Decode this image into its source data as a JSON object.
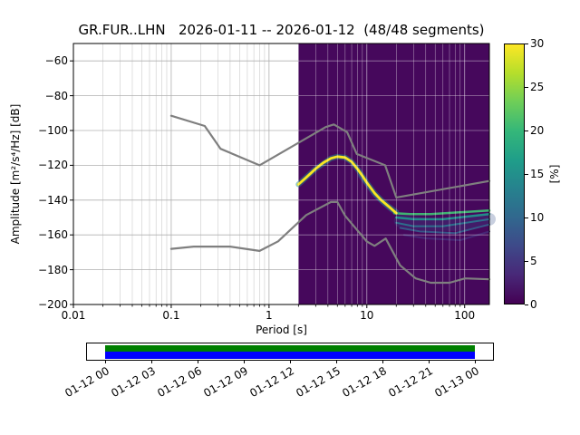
{
  "title": "GR.FUR..LHN   2026-01-11 -- 2026-01-12  (48/48 segments)",
  "axes": {
    "xlabel": "Period [s]",
    "ylabel": "Amplitude [m²/s⁴/Hz] [dB]"
  },
  "colorbar": {
    "label": "[%]",
    "min": 0,
    "max": 30,
    "tick_values": [
      0,
      5,
      10,
      15,
      20,
      25,
      30
    ],
    "gradient": [
      "#440154",
      "#482878",
      "#3e4989",
      "#31688e",
      "#26828e",
      "#1f9e89",
      "#35b779",
      "#6ece58",
      "#b5de2b",
      "#fde725"
    ]
  },
  "chart_data": {
    "type": "heatmap",
    "xscale": "log",
    "xlim": [
      0.01,
      179
    ],
    "ylim": [
      -200,
      -50
    ],
    "x_major_ticks": [
      {
        "v": 0.01,
        "label": "0.01"
      },
      {
        "v": 0.1,
        "label": "0.1"
      },
      {
        "v": 1,
        "label": "1"
      },
      {
        "v": 10,
        "label": "10"
      },
      {
        "v": 100,
        "label": "100"
      }
    ],
    "y_ticks": [
      {
        "v": -60,
        "label": "−60"
      },
      {
        "v": -80,
        "label": "−80"
      },
      {
        "v": -100,
        "label": "−100"
      },
      {
        "v": -120,
        "label": "−120"
      },
      {
        "v": -140,
        "label": "−140"
      },
      {
        "v": -160,
        "label": "−160"
      },
      {
        "v": -180,
        "label": "−180"
      },
      {
        "v": -200,
        "label": "−200"
      }
    ],
    "histogram_region": {
      "period_min": 2,
      "period_max": 179,
      "zero_percent_color": "#46085c"
    },
    "noise_models": {
      "color": "#7f7f7f",
      "nhnm": [
        [
          0.1,
          -91.5
        ],
        [
          0.22,
          -97.4
        ],
        [
          0.32,
          -110.5
        ],
        [
          0.8,
          -120
        ],
        [
          3.8,
          -98
        ],
        [
          4.6,
          -96.5
        ],
        [
          6.3,
          -101
        ],
        [
          7.9,
          -113.5
        ],
        [
          15.4,
          -120
        ],
        [
          20,
          -138.5
        ],
        [
          179,
          -129
        ]
      ],
      "nlnm": [
        [
          0.1,
          -168
        ],
        [
          0.17,
          -166.7
        ],
        [
          0.4,
          -166.7
        ],
        [
          0.8,
          -169.2
        ],
        [
          1.24,
          -163.7
        ],
        [
          2.4,
          -148.6
        ],
        [
          4.3,
          -141.1
        ],
        [
          5,
          -141.1
        ],
        [
          6,
          -149
        ],
        [
          10,
          -163.8
        ],
        [
          12,
          -166.3
        ],
        [
          15.6,
          -162.1
        ],
        [
          21.9,
          -177.5
        ],
        [
          31.6,
          -185
        ],
        [
          45,
          -187.5
        ],
        [
          70,
          -187.5
        ],
        [
          101,
          -185
        ],
        [
          179,
          -185.5
        ]
      ]
    },
    "psd_bands": [
      {
        "name": "spread-dim",
        "color": "#3b528b",
        "width": 14,
        "opacity": 0.28,
        "points": [
          [
            22,
            -152
          ],
          [
            40,
            -154
          ],
          [
            90,
            -154
          ],
          [
            179,
            -151
          ]
        ]
      },
      {
        "name": "band-deep-blue",
        "color": "#472d7b",
        "width": 2,
        "opacity": 0.85,
        "points": [
          [
            24,
            -160
          ],
          [
            40,
            -162
          ],
          [
            90,
            -163
          ],
          [
            179,
            -158
          ]
        ]
      },
      {
        "name": "band-blue",
        "color": "#355f8d",
        "width": 2,
        "opacity": 0.9,
        "points": [
          [
            22,
            -156
          ],
          [
            35,
            -158
          ],
          [
            80,
            -159
          ],
          [
            179,
            -154
          ]
        ]
      },
      {
        "name": "band-teal-low",
        "color": "#2c728e",
        "width": 2,
        "opacity": 0.95,
        "points": [
          [
            20,
            -153
          ],
          [
            30,
            -155
          ],
          [
            60,
            -155
          ],
          [
            179,
            -151
          ]
        ]
      },
      {
        "name": "band-teal",
        "color": "#21918c",
        "width": 2.5,
        "opacity": 0.95,
        "points": [
          [
            20,
            -150
          ],
          [
            30,
            -151
          ],
          [
            60,
            -151
          ],
          [
            179,
            -148
          ]
        ]
      },
      {
        "name": "band-green",
        "color": "#3fbc73",
        "width": 2.5,
        "opacity": 0.95,
        "points": [
          [
            19,
            -147.5
          ],
          [
            28,
            -148
          ],
          [
            45,
            -148
          ],
          [
            179,
            -146
          ]
        ]
      },
      {
        "name": "ridge-descent-glow",
        "color": "#443983",
        "width": 5,
        "opacity": 0.55,
        "points": [
          [
            8.5,
            -126
          ],
          [
            10,
            -131
          ],
          [
            12,
            -137
          ],
          [
            15,
            -142
          ],
          [
            18,
            -146
          ]
        ]
      },
      {
        "name": "ridge-glow",
        "color": "#21918c",
        "width": 6,
        "opacity": 0.5,
        "points": [
          [
            2,
            -131
          ],
          [
            3,
            -122
          ],
          [
            4.3,
            -116
          ],
          [
            5,
            -115
          ],
          [
            6,
            -115.5
          ],
          [
            7,
            -118
          ],
          [
            8,
            -122
          ],
          [
            10,
            -130
          ],
          [
            12,
            -136
          ],
          [
            14,
            -140
          ],
          [
            17,
            -144
          ],
          [
            20,
            -147
          ]
        ]
      },
      {
        "name": "ridge-mode",
        "color": "#f8e621",
        "width": 2.8,
        "opacity": 1,
        "points": [
          [
            2,
            -131
          ],
          [
            2.4,
            -127
          ],
          [
            3,
            -122
          ],
          [
            3.6,
            -118.5
          ],
          [
            4.3,
            -116
          ],
          [
            5,
            -115
          ],
          [
            6,
            -115.5
          ],
          [
            7,
            -118
          ],
          [
            8,
            -122
          ],
          [
            9,
            -126
          ],
          [
            10,
            -130
          ],
          [
            12,
            -136
          ],
          [
            14,
            -140
          ],
          [
            17,
            -144
          ],
          [
            20,
            -147.5
          ]
        ]
      }
    ]
  },
  "timeline": {
    "bar_colors": {
      "processed": "#008000",
      "data": "#0000ff"
    },
    "tick_labels": [
      "01-12 00",
      "01-12 03",
      "01-12 06",
      "01-12 09",
      "01-12 12",
      "01-12 15",
      "01-12 18",
      "01-12 21",
      "01-13 00"
    ]
  }
}
